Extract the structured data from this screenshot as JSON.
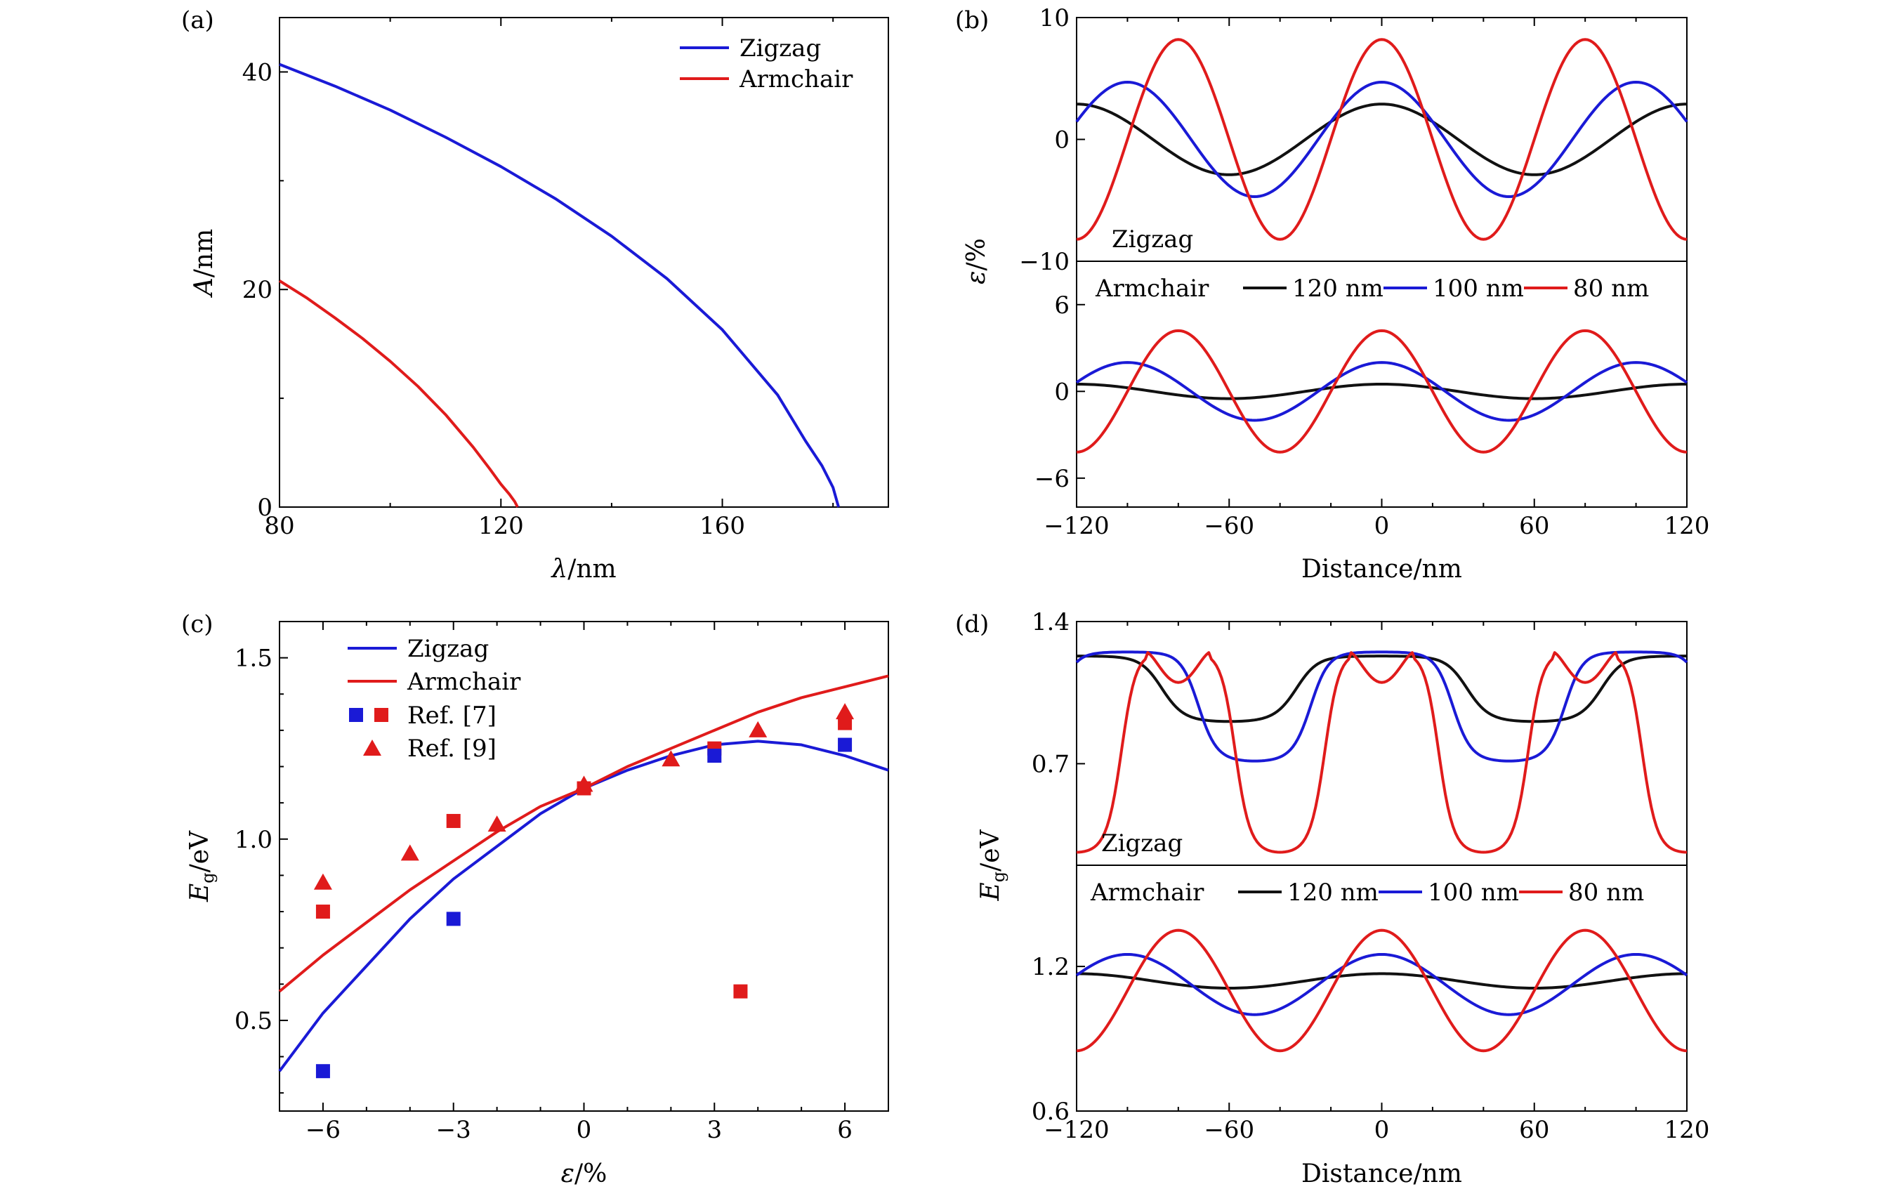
{
  "colors": {
    "zigzag": "#1a1ad6",
    "armchair": "#e01b1b",
    "black": "#111111",
    "blue": "#1a1ad6",
    "red": "#e01b1b"
  },
  "chart_data": [
    {
      "panel": "(a)",
      "type": "line",
      "xlabel": "λ/nm",
      "ylabel": "A/nm",
      "xlim": [
        80,
        190
      ],
      "ylim": [
        0,
        45
      ],
      "xticks": [
        80,
        120,
        160
      ],
      "yticks": [
        0,
        20,
        40
      ],
      "legend": [
        "Zigzag",
        "Armchair"
      ],
      "legend_position": "top-right",
      "series": [
        {
          "name": "Zigzag",
          "color": "blue",
          "x": [
            80,
            90,
            100,
            110,
            120,
            130,
            140,
            150,
            160,
            170,
            175,
            178,
            180,
            181
          ],
          "y": [
            40.7,
            38.7,
            36.5,
            34.0,
            31.3,
            28.3,
            24.9,
            21.0,
            16.3,
            10.3,
            6.1,
            3.8,
            1.8,
            0
          ]
        },
        {
          "name": "Armchair",
          "color": "red",
          "x": [
            80,
            85,
            90,
            95,
            100,
            105,
            110,
            115,
            118,
            120,
            121.5,
            122.5,
            123
          ],
          "y": [
            20.8,
            19.2,
            17.4,
            15.5,
            13.4,
            11.1,
            8.5,
            5.5,
            3.5,
            2.1,
            1.2,
            0.5,
            0
          ]
        }
      ]
    },
    {
      "panel": "(b)",
      "type": "line",
      "xlabel": "Distance/nm",
      "ylabel": "ε/%",
      "xlim": [
        -120,
        120
      ],
      "xticks": [
        -120,
        -60,
        0,
        60,
        120
      ],
      "xtick_labels": [
        "−120",
        "−60",
        "0",
        "60",
        "120"
      ],
      "legend": [
        "Armchair",
        "120 nm",
        "100 nm",
        "80 nm"
      ],
      "subplots": [
        {
          "label": "Zigzag",
          "ylim": [
            -10,
            10
          ],
          "yticks": [
            -10,
            0,
            10
          ],
          "ytick_labels": [
            "−10",
            "0",
            "10"
          ],
          "series": [
            {
              "name": "120 nm",
              "color": "black",
              "wavelength_nm": 120,
              "amplitude": 2.9
            },
            {
              "name": "100 nm",
              "color": "blue",
              "wavelength_nm": 100,
              "amplitude": 4.7
            },
            {
              "name": "80 nm",
              "color": "red",
              "wavelength_nm": 80,
              "amplitude": 8.2
            }
          ]
        },
        {
          "label": "Armchair",
          "ylim": [
            -8,
            9
          ],
          "yticks": [
            -6,
            0,
            6
          ],
          "ytick_labels": [
            "−6",
            "0",
            "6"
          ],
          "series": [
            {
              "name": "120 nm",
              "color": "black",
              "wavelength_nm": 120,
              "amplitude": 0.5
            },
            {
              "name": "100 nm",
              "color": "blue",
              "wavelength_nm": 100,
              "amplitude": 2.0
            },
            {
              "name": "80 nm",
              "color": "red",
              "wavelength_nm": 80,
              "amplitude": 4.2
            }
          ]
        }
      ]
    },
    {
      "panel": "(c)",
      "type": "line",
      "xlabel": "ε/%",
      "ylabel": "Eg/eV",
      "ylabel_main": "E",
      "ylabel_sub": "g",
      "ylabel_unit": "/eV",
      "xlim": [
        -7,
        7
      ],
      "ylim": [
        0.25,
        1.6
      ],
      "xticks": [
        -6,
        -3,
        0,
        3,
        6
      ],
      "xtick_labels": [
        "−6",
        "−3",
        "0",
        "3",
        "6"
      ],
      "yticks": [
        0.5,
        1.0,
        1.5
      ],
      "ytick_labels": [
        "0.5",
        "1.0",
        "1.5"
      ],
      "legend": [
        "Zigzag",
        "Armchair",
        "Ref. [7]",
        "Ref. [9]"
      ],
      "legend_position": "top-left",
      "series": [
        {
          "name": "Zigzag",
          "color": "blue",
          "x": [
            -7,
            -6,
            -5,
            -4,
            -3,
            -2,
            -1,
            0,
            1,
            2,
            3,
            4,
            5,
            6,
            7
          ],
          "y": [
            0.36,
            0.52,
            0.65,
            0.78,
            0.89,
            0.98,
            1.07,
            1.14,
            1.19,
            1.23,
            1.26,
            1.27,
            1.26,
            1.23,
            1.19
          ]
        },
        {
          "name": "Armchair",
          "color": "red",
          "x": [
            -7,
            -6,
            -5,
            -4,
            -3,
            -2,
            -1,
            0,
            1,
            2,
            3,
            4,
            5,
            6,
            7
          ],
          "y": [
            0.58,
            0.68,
            0.77,
            0.86,
            0.94,
            1.02,
            1.09,
            1.14,
            1.2,
            1.25,
            1.3,
            1.35,
            1.39,
            1.42,
            1.45
          ]
        }
      ],
      "markers": {
        "ref7_blue_squares": [
          [
            -6,
            0.36
          ],
          [
            -3,
            0.78
          ],
          [
            3,
            1.23
          ],
          [
            6,
            1.26
          ]
        ],
        "ref7_red_squares": [
          [
            -6,
            0.8
          ],
          [
            -3,
            1.05
          ],
          [
            0,
            1.14
          ],
          [
            3,
            1.25
          ],
          [
            3.6,
            0.58
          ],
          [
            6,
            1.32
          ]
        ],
        "ref9_red_triangles": [
          [
            -6,
            0.88
          ],
          [
            -4,
            0.96
          ],
          [
            -2,
            1.04
          ],
          [
            0,
            1.15
          ],
          [
            2,
            1.22
          ],
          [
            4,
            1.3
          ],
          [
            6,
            1.35
          ]
        ]
      }
    },
    {
      "panel": "(d)",
      "type": "line",
      "xlabel": "Distance/nm",
      "ylabel": "Eg/eV",
      "ylabel_main": "E",
      "ylabel_sub": "g",
      "ylabel_unit": "/eV",
      "xlim": [
        -120,
        120
      ],
      "xticks": [
        -120,
        -60,
        0,
        60,
        120
      ],
      "xtick_labels": [
        "−120",
        "−60",
        "0",
        "60",
        "120"
      ],
      "legend": [
        "Armchair",
        "120 nm",
        "100 nm",
        "80 nm"
      ],
      "subplots": [
        {
          "label": "Zigzag",
          "ylim": [
            0.2,
            1.4
          ],
          "yticks": [
            0.7,
            1.4
          ],
          "ytick_labels": [
            "0.7",
            "1.4"
          ],
          "series": [
            {
              "name": "120 nm",
              "color": "black",
              "wavelength_nm": 120,
              "max": 1.23,
              "min": 0.9
            },
            {
              "name": "100 nm",
              "color": "blue",
              "wavelength_nm": 100,
              "max": 1.25,
              "min": 0.7
            },
            {
              "name": "80 nm",
              "color": "red",
              "wavelength_nm": 80,
              "max": 1.25,
              "min": 0.24,
              "local_min_at_peak": 1.1
            }
          ]
        },
        {
          "label": "Armchair",
          "ylim": [
            0.6,
            1.62
          ],
          "yticks": [
            0.6,
            1.2
          ],
          "ytick_labels": [
            "0.6",
            "1.2"
          ],
          "series": [
            {
              "name": "120 nm",
              "color": "black",
              "wavelength_nm": 120,
              "max": 1.17,
              "min": 1.11
            },
            {
              "name": "100 nm",
              "color": "blue",
              "wavelength_nm": 100,
              "max": 1.25,
              "min": 1.0
            },
            {
              "name": "80 nm",
              "color": "red",
              "wavelength_nm": 80,
              "max": 1.35,
              "min": 0.85
            }
          ]
        }
      ]
    }
  ]
}
